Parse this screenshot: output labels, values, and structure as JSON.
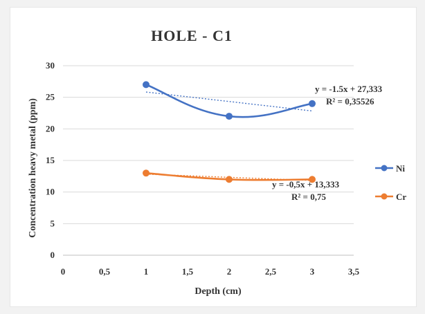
{
  "chart_data": {
    "type": "line",
    "title": "HOLE - C1",
    "xlabel": "Depth (cm)",
    "ylabel": "Concentration heavy metal (ppm)",
    "xlim": [
      0,
      3.5
    ],
    "ylim": [
      0,
      30
    ],
    "x_ticks": [
      "0",
      "0,5",
      "1",
      "1,5",
      "2",
      "2,5",
      "3",
      "3,5"
    ],
    "y_ticks": [
      "0",
      "5",
      "10",
      "15",
      "20",
      "25",
      "30"
    ],
    "grid": true,
    "legend_position": "right",
    "series": [
      {
        "name": "Ni",
        "color": "#4472c4",
        "x": [
          1,
          2,
          3
        ],
        "values": [
          27,
          22,
          24
        ],
        "trendline": {
          "slope": -1.5,
          "intercept": 27.333
        },
        "equation": "y = -1.5x + 27,333",
        "r2": "R² = 0,35526"
      },
      {
        "name": "Cr",
        "color": "#ed7d31",
        "x": [
          1,
          2,
          3
        ],
        "values": [
          13,
          12,
          12
        ],
        "trendline": {
          "slope": -0.5,
          "intercept": 13.333
        },
        "equation": "y = -0,5x + 13,333",
        "r2": "R² = 0,75"
      }
    ]
  }
}
